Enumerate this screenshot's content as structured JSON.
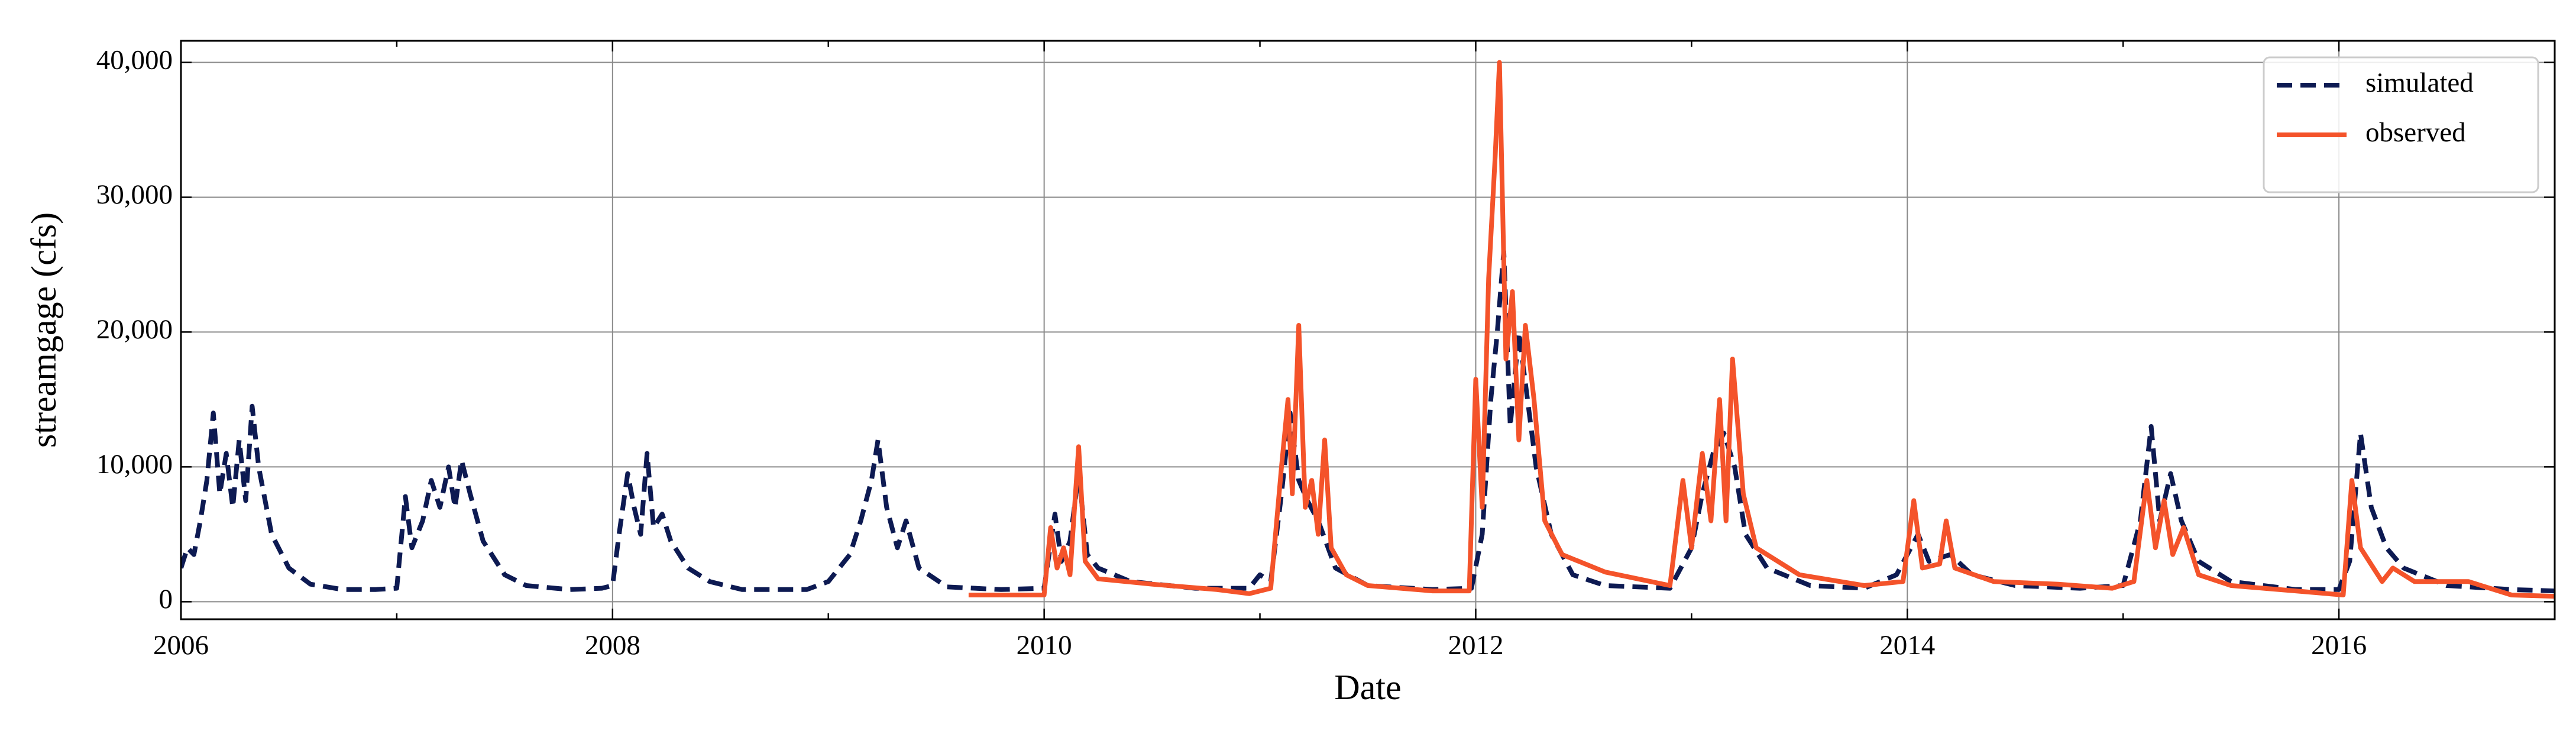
{
  "chart_data": {
    "type": "line",
    "xlabel": "Date",
    "ylabel": "streamgage (cfs)",
    "xlim": [
      2006,
      2017
    ],
    "ylim": [
      -1300,
      41600
    ],
    "xticks": [
      2006,
      2008,
      2010,
      2012,
      2014,
      2016
    ],
    "xticks_minor": [
      2007,
      2009,
      2011,
      2013,
      2015,
      2017
    ],
    "yticks": [
      0,
      {
        "value": 10000,
        "label": "10,000"
      },
      {
        "value": 20000,
        "label": "20,000"
      },
      {
        "value": 30000,
        "label": "30,000"
      },
      {
        "value": 40000,
        "label": "40,000"
      }
    ],
    "grid": true,
    "legend": "upper right",
    "series": [
      {
        "name": "simulated",
        "color": "#0d1a52",
        "linestyle": "dashed",
        "x": [
          2006.0,
          2006.03,
          2006.06,
          2006.09,
          2006.12,
          2006.15,
          2006.18,
          2006.21,
          2006.24,
          2006.27,
          2006.3,
          2006.33,
          2006.36,
          2006.42,
          2006.5,
          2006.6,
          2006.75,
          2006.9,
          2007.0,
          2007.04,
          2007.07,
          2007.12,
          2007.16,
          2007.2,
          2007.24,
          2007.27,
          2007.3,
          2007.34,
          2007.4,
          2007.5,
          2007.6,
          2007.8,
          2007.95,
          2008.0,
          2008.03,
          2008.07,
          2008.1,
          2008.13,
          2008.16,
          2008.19,
          2008.23,
          2008.27,
          2008.35,
          2008.45,
          2008.6,
          2008.9,
          2009.0,
          2009.05,
          2009.1,
          2009.15,
          2009.2,
          2009.23,
          2009.27,
          2009.32,
          2009.36,
          2009.42,
          2009.55,
          2009.8,
          2010.0,
          2010.05,
          2010.08,
          2010.12,
          2010.16,
          2010.2,
          2010.25,
          2010.4,
          2010.7,
          2010.95,
          2011.0,
          2011.05,
          2011.1,
          2011.14,
          2011.18,
          2011.22,
          2011.27,
          2011.35,
          2011.5,
          2011.8,
          2011.98,
          2012.03,
          2012.07,
          2012.1,
          2012.13,
          2012.16,
          2012.2,
          2012.24,
          2012.28,
          2012.35,
          2012.45,
          2012.6,
          2012.9,
          2013.0,
          2013.05,
          2013.1,
          2013.15,
          2013.2,
          2013.25,
          2013.35,
          2013.55,
          2013.8,
          2013.95,
          2014.05,
          2014.1,
          2014.2,
          2014.3,
          2014.5,
          2014.8,
          2015.0,
          2015.08,
          2015.13,
          2015.17,
          2015.22,
          2015.27,
          2015.35,
          2015.5,
          2015.8,
          2016.0,
          2016.05,
          2016.1,
          2016.15,
          2016.22,
          2016.3,
          2016.5,
          2016.8,
          2017.0
        ],
        "values": [
          2500,
          4000,
          3500,
          6000,
          9000,
          14000,
          8000,
          11000,
          7000,
          12000,
          7500,
          14500,
          10000,
          5000,
          2500,
          1300,
          900,
          900,
          1000,
          7800,
          4000,
          6000,
          9000,
          7000,
          10000,
          7000,
          10500,
          8000,
          4500,
          2000,
          1200,
          900,
          1000,
          1200,
          5000,
          9500,
          7000,
          5000,
          11000,
          5500,
          6500,
          4500,
          2500,
          1500,
          900,
          900,
          1500,
          2500,
          3500,
          6000,
          9000,
          12000,
          7000,
          4000,
          6000,
          2500,
          1100,
          900,
          1000,
          6500,
          3000,
          4500,
          9500,
          3500,
          2500,
          1500,
          1000,
          1000,
          2000,
          1500,
          8000,
          14000,
          9000,
          7500,
          6000,
          2500,
          1200,
          900,
          1000,
          5000,
          15000,
          20000,
          26000,
          13000,
          20000,
          15000,
          10000,
          5000,
          2000,
          1200,
          1000,
          4000,
          8000,
          11000,
          12500,
          10000,
          5000,
          2500,
          1200,
          1000,
          2000,
          5000,
          3000,
          3500,
          2000,
          1200,
          1000,
          1200,
          6000,
          13000,
          6000,
          9500,
          6000,
          3000,
          1500,
          900,
          900,
          3000,
          12500,
          7000,
          4000,
          2500,
          1200,
          900,
          800
        ]
      },
      {
        "name": "observed",
        "color": "#f4532a",
        "linestyle": "solid",
        "x": [
          2009.65,
          2010.0,
          2010.03,
          2010.06,
          2010.09,
          2010.12,
          2010.16,
          2010.19,
          2010.25,
          2010.5,
          2010.8,
          2010.95,
          2011.05,
          2011.1,
          2011.13,
          2011.15,
          2011.18,
          2011.21,
          2011.24,
          2011.27,
          2011.3,
          2011.33,
          2011.4,
          2011.5,
          2011.8,
          2011.97,
          2012.0,
          2012.03,
          2012.06,
          2012.09,
          2012.11,
          2012.14,
          2012.17,
          2012.2,
          2012.23,
          2012.27,
          2012.32,
          2012.4,
          2012.6,
          2012.9,
          2012.96,
          2013.0,
          2013.05,
          2013.09,
          2013.13,
          2013.16,
          2013.19,
          2013.24,
          2013.3,
          2013.5,
          2013.8,
          2013.98,
          2014.03,
          2014.07,
          2014.15,
          2014.18,
          2014.22,
          2014.4,
          2014.7,
          2014.95,
          2015.05,
          2015.11,
          2015.15,
          2015.19,
          2015.23,
          2015.28,
          2015.35,
          2015.5,
          2015.8,
          2016.02,
          2016.06,
          2016.1,
          2016.2,
          2016.25,
          2016.35,
          2016.6,
          2016.8,
          2017.0
        ],
        "values": [
          500,
          500,
          5500,
          2500,
          4000,
          2000,
          11500,
          3000,
          1700,
          1300,
          900,
          600,
          1000,
          10000,
          15000,
          8000,
          20500,
          7000,
          9000,
          5000,
          12000,
          4000,
          2000,
          1200,
          800,
          800,
          16500,
          7000,
          24000,
          33000,
          40000,
          18000,
          23000,
          12000,
          20500,
          15000,
          6000,
          3500,
          2200,
          1200,
          9000,
          4000,
          11000,
          6000,
          15000,
          6000,
          18000,
          8000,
          4000,
          2000,
          1200,
          1500,
          7500,
          2500,
          2800,
          6000,
          2500,
          1500,
          1300,
          1000,
          1500,
          9000,
          4000,
          7500,
          3500,
          5500,
          2000,
          1200,
          800,
          500,
          9000,
          4000,
          1500,
          2500,
          1500,
          1500,
          500,
          400
        ]
      }
    ]
  }
}
